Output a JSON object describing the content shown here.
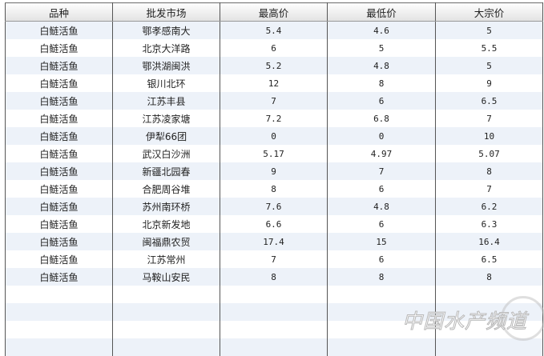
{
  "headers": [
    "品种",
    "批发市场",
    "最高价",
    "最低价",
    "大宗价"
  ],
  "rows": [
    [
      "白鲢活鱼",
      "鄂孝感南大",
      "5.4",
      "4.6",
      "5"
    ],
    [
      "白鲢活鱼",
      "北京大洋路",
      "6",
      "5",
      "5.5"
    ],
    [
      "白鲢活鱼",
      "鄂洪湖闽洪",
      "5.2",
      "4.8",
      "5"
    ],
    [
      "白鲢活鱼",
      "银川北环",
      "12",
      "8",
      "9"
    ],
    [
      "白鲢活鱼",
      "江苏丰县",
      "7",
      "6",
      "6.5"
    ],
    [
      "白鲢活鱼",
      "江苏凌家塘",
      "7.2",
      "6.8",
      "7"
    ],
    [
      "白鲢活鱼",
      "伊犁66团",
      "0",
      "0",
      "10"
    ],
    [
      "白鲢活鱼",
      "武汉白沙洲",
      "5.17",
      "4.97",
      "5.07"
    ],
    [
      "白鲢活鱼",
      "新疆北园春",
      "9",
      "7",
      "8"
    ],
    [
      "白鲢活鱼",
      "合肥周谷堆",
      "8",
      "6",
      "7"
    ],
    [
      "白鲢活鱼",
      "苏州南环桥",
      "7.6",
      "4.8",
      "6.2"
    ],
    [
      "白鲢活鱼",
      "北京新发地",
      "6.6",
      "6",
      "6.3"
    ],
    [
      "白鲢活鱼",
      "闽福鼎农贸",
      "17.4",
      "15",
      "16.4"
    ],
    [
      "白鲢活鱼",
      "江苏常州",
      "7",
      "6",
      "6.5"
    ],
    [
      "白鲢活鱼",
      "马鞍山安民",
      "8",
      "8",
      "8"
    ]
  ],
  "empty_rows": 4,
  "watermark": {
    "text": "中国水产频道"
  },
  "colors": {
    "row_alt": "#edf2f9",
    "border": "#555555"
  }
}
